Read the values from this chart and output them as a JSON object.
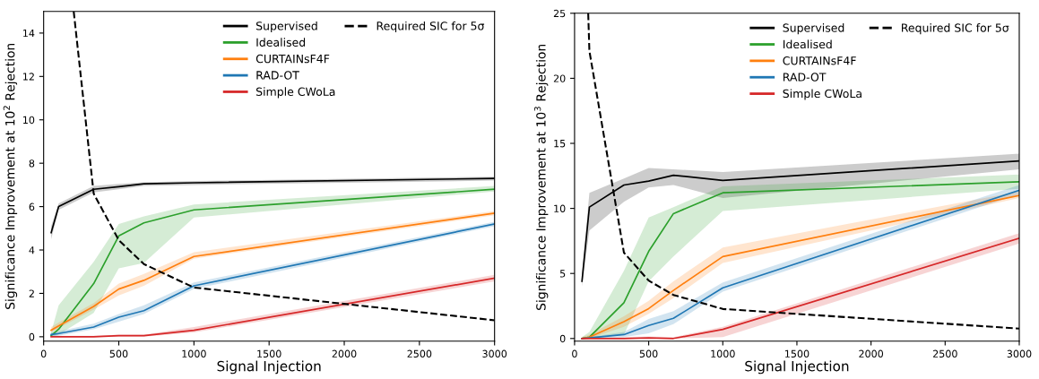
{
  "chart_data": [
    {
      "type": "line",
      "xlabel": "Signal Injection",
      "ylabel": "Significance Improvement at 10$^{2}$ Rejection",
      "x": [
        50,
        100,
        333,
        500,
        667,
        1000,
        3000
      ],
      "xlim": [
        0,
        3000
      ],
      "xticks": [
        0,
        500,
        1000,
        1500,
        2000,
        2500,
        3000
      ],
      "ylim": [
        -0.2,
        15
      ],
      "yticks": [
        0,
        2,
        4,
        6,
        8,
        10,
        12,
        14
      ],
      "grid": false,
      "legend": "top right",
      "marker": "none",
      "series": [
        {
          "name": "Supervised",
          "color": "#000000",
          "values": [
            4.8,
            6.0,
            6.8,
            6.92,
            7.05,
            7.1,
            7.3
          ],
          "lower": [
            4.5,
            5.85,
            6.65,
            6.8,
            6.95,
            7.0,
            7.2
          ],
          "upper": [
            5.1,
            6.15,
            6.95,
            7.05,
            7.12,
            7.18,
            7.38
          ]
        },
        {
          "name": "Idealised",
          "color": "#2ca02c",
          "values": [
            0.05,
            0.35,
            2.45,
            4.65,
            5.25,
            5.85,
            6.8
          ],
          "lower": [
            0.0,
            0.1,
            1.1,
            3.15,
            3.4,
            5.5,
            6.7
          ],
          "upper": [
            0.2,
            1.45,
            3.45,
            5.2,
            5.55,
            6.1,
            6.95
          ]
        },
        {
          "name": "CURTAINsF4F",
          "color": "#ff7f0e",
          "values": [
            0.3,
            0.5,
            1.4,
            2.2,
            2.6,
            3.7,
            5.7
          ],
          "lower": [
            0.2,
            0.4,
            1.25,
            1.9,
            2.35,
            3.6,
            5.6
          ],
          "upper": [
            0.45,
            0.65,
            1.55,
            2.45,
            2.9,
            3.9,
            5.8
          ]
        },
        {
          "name": "RAD-OT",
          "color": "#1f77b4",
          "values": [
            0.1,
            0.15,
            0.45,
            0.9,
            1.2,
            2.35,
            5.2
          ],
          "lower": [
            0.0,
            0.05,
            0.35,
            0.7,
            1.05,
            2.2,
            5.1
          ],
          "upper": [
            0.2,
            0.25,
            0.6,
            1.05,
            1.45,
            2.5,
            5.3
          ]
        },
        {
          "name": "Simple CWoLa",
          "color": "#d62728",
          "values": [
            0.0,
            0.0,
            0.0,
            0.05,
            0.05,
            0.3,
            2.7
          ],
          "lower": [
            0.0,
            0.0,
            0.0,
            0.0,
            0.0,
            0.2,
            2.55
          ],
          "upper": [
            0.05,
            0.05,
            0.05,
            0.1,
            0.1,
            0.45,
            2.85
          ]
        },
        {
          "name": "Required SIC for 5σ",
          "color": "#000000",
          "line_style": "dashed",
          "x": [
            200,
            333,
            500,
            667,
            1000,
            3000
          ],
          "values": [
            15,
            6.6,
            4.45,
            3.35,
            2.27,
            0.76
          ]
        }
      ]
    },
    {
      "type": "line",
      "xlabel": "Signal Injection",
      "ylabel": "Significance Improvement at 10$^{3}$ Rejection",
      "x": [
        50,
        100,
        333,
        500,
        667,
        1000,
        3000
      ],
      "xlim": [
        0,
        3000
      ],
      "xticks": [
        0,
        500,
        1000,
        1500,
        2000,
        2500,
        3000
      ],
      "ylim": [
        -0.2,
        25
      ],
      "yticks": [
        0,
        5,
        10,
        15,
        20,
        25
      ],
      "grid": false,
      "legend": "top right",
      "marker": "none",
      "series": [
        {
          "name": "Supervised",
          "color": "#000000",
          "values": [
            4.4,
            10.1,
            11.8,
            12.1,
            12.55,
            12.15,
            13.65
          ],
          "lower": [
            4.0,
            8.3,
            10.5,
            11.6,
            11.8,
            10.8,
            13.0
          ],
          "upper": [
            5.0,
            11.2,
            12.3,
            13.1,
            13.0,
            12.8,
            14.2
          ]
        },
        {
          "name": "Idealised",
          "color": "#2ca02c",
          "values": [
            0.0,
            0.1,
            2.75,
            6.7,
            9.6,
            11.2,
            12.05
          ],
          "lower": [
            0.0,
            0.0,
            0.3,
            4.4,
            6.3,
            9.8,
            11.5
          ],
          "upper": [
            0.1,
            0.5,
            5.2,
            9.3,
            10.1,
            11.7,
            12.6
          ]
        },
        {
          "name": "CURTAINsF4F",
          "color": "#ff7f0e",
          "values": [
            0.0,
            0.1,
            1.3,
            2.3,
            3.7,
            6.3,
            11.0
          ],
          "lower": [
            0.0,
            0.0,
            0.9,
            1.9,
            3.1,
            5.8,
            10.8
          ],
          "upper": [
            0.1,
            0.3,
            1.7,
            2.9,
            4.4,
            7.0,
            11.3
          ]
        },
        {
          "name": "RAD-OT",
          "color": "#1f77b4",
          "values": [
            0.0,
            0.05,
            0.3,
            1.0,
            1.55,
            3.9,
            11.4
          ],
          "lower": [
            0.0,
            0.0,
            0.1,
            0.4,
            1.1,
            3.6,
            11.1
          ],
          "upper": [
            0.1,
            0.1,
            0.5,
            1.5,
            2.1,
            4.3,
            11.8
          ]
        },
        {
          "name": "Simple CWoLa",
          "color": "#d62728",
          "values": [
            0.0,
            0.0,
            0.0,
            0.05,
            0.0,
            0.7,
            7.7
          ],
          "lower": [
            0.0,
            0.0,
            0.0,
            0.0,
            0.0,
            0.1,
            7.3
          ],
          "upper": [
            0.05,
            0.05,
            0.1,
            0.15,
            0.1,
            0.9,
            8.1
          ]
        },
        {
          "name": "Required SIC for 5σ",
          "color": "#000000",
          "line_style": "dashed",
          "x": [
            92,
            100,
            333,
            500,
            667,
            1000,
            3000
          ],
          "values": [
            25,
            22.1,
            6.6,
            4.45,
            3.35,
            2.27,
            0.76
          ]
        }
      ]
    }
  ]
}
